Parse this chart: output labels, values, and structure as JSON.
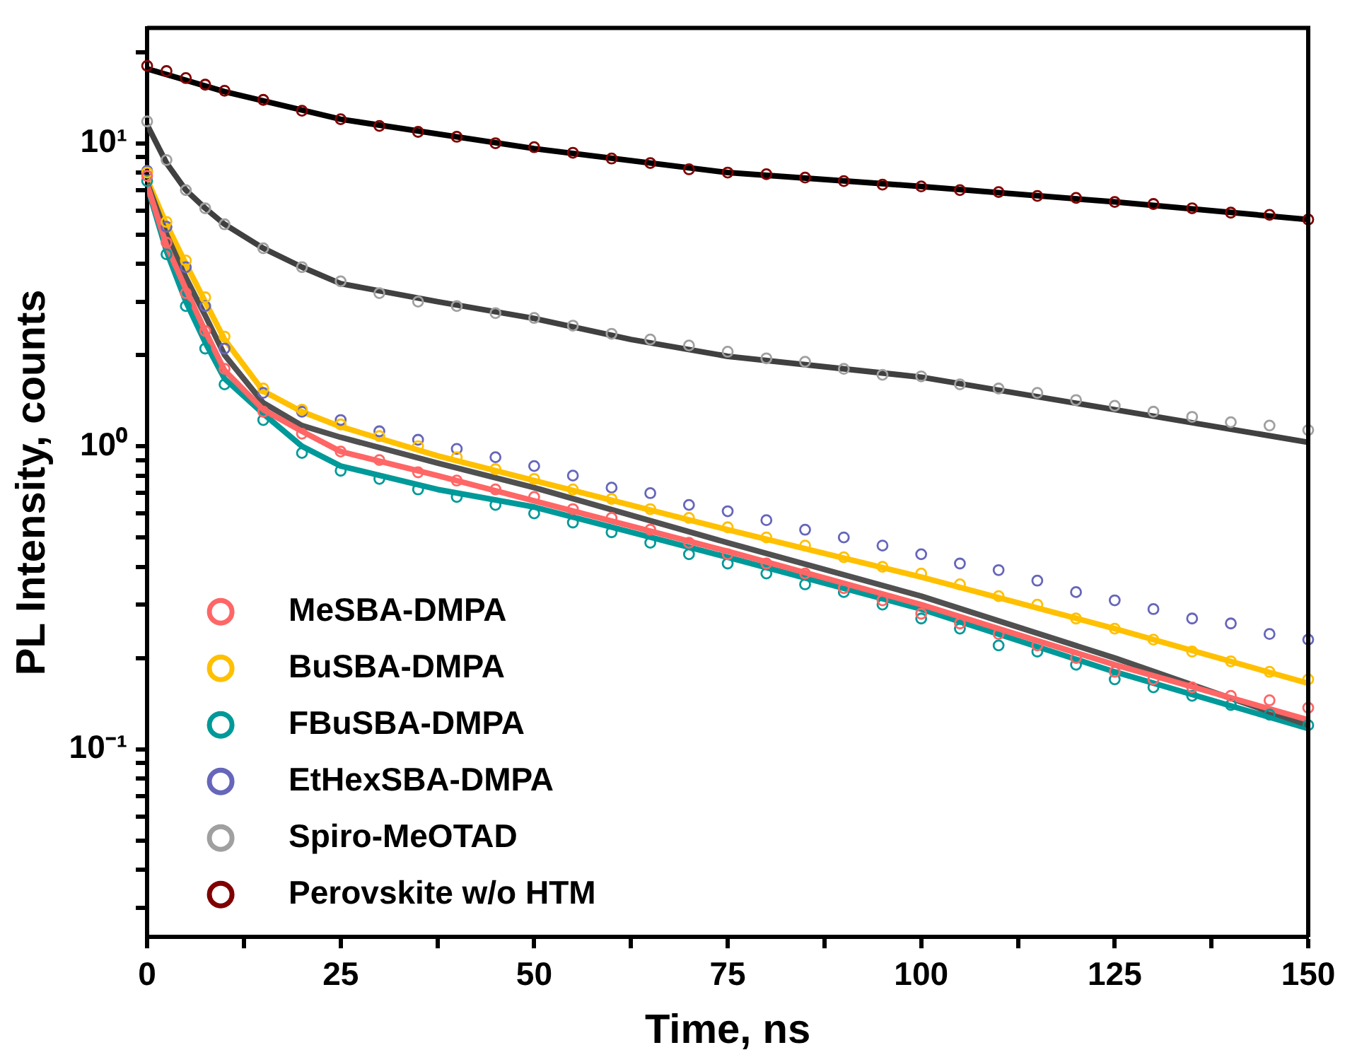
{
  "chart_data": {
    "type": "scatter",
    "xlabel": "Time, ns",
    "ylabel": "PL Intensity, counts",
    "log": "y",
    "legend": "bottom left",
    "grid": false,
    "marker": "circle",
    "xlim": [
      0,
      150
    ],
    "xticks": [
      0,
      {
        "value": 12.5,
        "label": null
      },
      25,
      {
        "value": 37.5,
        "label": null
      },
      50,
      {
        "value": 62.5,
        "label": null
      },
      75,
      {
        "value": 87.5,
        "label": null
      },
      100,
      {
        "value": 112.5,
        "label": null
      },
      125,
      {
        "value": 137.5,
        "label": null
      },
      150
    ],
    "ylim": [
      0.024,
      24
    ],
    "yticks": [
      {
        "value": 0.03,
        "label": null
      },
      {
        "value": 0.04,
        "label": null
      },
      {
        "value": 0.05,
        "label": null
      },
      {
        "value": 0.06,
        "label": null
      },
      {
        "value": 0.07,
        "label": null
      },
      {
        "value": 0.08,
        "label": null
      },
      {
        "value": 0.09,
        "label": null
      },
      {
        "value": 0.1,
        "label": "10⁻¹"
      },
      {
        "value": 0.2,
        "label": null
      },
      {
        "value": 0.3,
        "label": null
      },
      {
        "value": 0.4,
        "label": null
      },
      {
        "value": 0.5,
        "label": null
      },
      {
        "value": 0.6,
        "label": null
      },
      {
        "value": 0.7,
        "label": null
      },
      {
        "value": 0.8,
        "label": null
      },
      {
        "value": 0.9,
        "label": null
      },
      {
        "value": 1,
        "label": "10⁰"
      },
      {
        "value": 2,
        "label": null
      },
      {
        "value": 3,
        "label": null
      },
      {
        "value": 4,
        "label": null
      },
      {
        "value": 5,
        "label": null
      },
      {
        "value": 6,
        "label": null
      },
      {
        "value": 7,
        "label": null
      },
      {
        "value": 8,
        "label": null
      },
      {
        "value": 9,
        "label": null
      },
      {
        "value": 10,
        "label": "10¹"
      },
      {
        "value": 20,
        "label": null
      }
    ],
    "series": [
      {
        "name": "MeSBA-DMPA",
        "color": "#ff6666",
        "x": [
          0,
          2.5,
          5,
          7.5,
          10,
          15,
          20,
          25,
          30,
          35,
          40,
          45,
          50,
          55,
          60,
          65,
          70,
          75,
          80,
          85,
          90,
          95,
          100,
          105,
          110,
          115,
          120,
          125,
          130,
          135,
          140,
          145,
          150
        ],
        "values": [
          7.8,
          4.7,
          3.2,
          2.4,
          1.8,
          1.3,
          1.1,
          0.96,
          0.9,
          0.82,
          0.77,
          0.72,
          0.68,
          0.62,
          0.58,
          0.53,
          0.48,
          0.44,
          0.41,
          0.38,
          0.34,
          0.31,
          0.28,
          0.26,
          0.24,
          0.22,
          0.2,
          0.18,
          0.17,
          0.16,
          0.15,
          0.145,
          0.137
        ]
      },
      {
        "name": "BuSBA-DMPA",
        "color": "#ffc000",
        "x": [
          0,
          2.5,
          5,
          7.5,
          10,
          15,
          20,
          25,
          30,
          35,
          40,
          45,
          50,
          55,
          60,
          65,
          70,
          75,
          80,
          85,
          90,
          95,
          100,
          105,
          110,
          115,
          120,
          125,
          130,
          135,
          140,
          145,
          150
        ],
        "values": [
          8.0,
          5.5,
          4.1,
          3.1,
          2.3,
          1.55,
          1.32,
          1.18,
          1.08,
          1.0,
          0.92,
          0.84,
          0.78,
          0.72,
          0.67,
          0.62,
          0.58,
          0.54,
          0.5,
          0.47,
          0.43,
          0.4,
          0.38,
          0.35,
          0.32,
          0.3,
          0.27,
          0.25,
          0.23,
          0.21,
          0.195,
          0.18,
          0.17
        ]
      },
      {
        "name": "FBuSBA-DMPA",
        "color": "#009999",
        "x": [
          0,
          2.5,
          5,
          7.5,
          10,
          15,
          20,
          25,
          30,
          35,
          40,
          45,
          50,
          55,
          60,
          65,
          70,
          75,
          80,
          85,
          90,
          95,
          100,
          105,
          110,
          115,
          120,
          125,
          130,
          135,
          140,
          145,
          150
        ],
        "values": [
          7.5,
          4.3,
          2.9,
          2.1,
          1.6,
          1.22,
          0.95,
          0.83,
          0.78,
          0.72,
          0.68,
          0.64,
          0.6,
          0.56,
          0.52,
          0.48,
          0.44,
          0.41,
          0.38,
          0.35,
          0.33,
          0.3,
          0.27,
          0.25,
          0.22,
          0.21,
          0.19,
          0.17,
          0.16,
          0.15,
          0.14,
          0.13,
          0.12
        ]
      },
      {
        "name": "EtHexSBA-DMPA",
        "color": "#6666bb",
        "x": [
          0,
          2.5,
          5,
          7.5,
          10,
          15,
          20,
          25,
          30,
          35,
          40,
          45,
          50,
          55,
          60,
          65,
          70,
          75,
          80,
          85,
          90,
          95,
          100,
          105,
          110,
          115,
          120,
          125,
          130,
          135,
          140,
          145,
          150
        ],
        "values": [
          8.1,
          5.3,
          3.9,
          2.9,
          2.1,
          1.5,
          1.3,
          1.22,
          1.12,
          1.05,
          0.98,
          0.92,
          0.86,
          0.8,
          0.73,
          0.7,
          0.64,
          0.61,
          0.57,
          0.53,
          0.5,
          0.47,
          0.44,
          0.41,
          0.39,
          0.36,
          0.33,
          0.31,
          0.29,
          0.27,
          0.26,
          0.24,
          0.23
        ]
      },
      {
        "name": "Spiro-MeOTAD",
        "color": "#a0a0a0",
        "x": [
          0,
          2.5,
          5,
          7.5,
          10,
          15,
          20,
          25,
          30,
          35,
          40,
          45,
          50,
          55,
          60,
          65,
          70,
          75,
          80,
          85,
          90,
          95,
          100,
          105,
          110,
          115,
          120,
          125,
          130,
          135,
          140,
          145,
          150
        ],
        "values": [
          11.8,
          8.8,
          7.0,
          6.1,
          5.4,
          4.5,
          3.9,
          3.5,
          3.2,
          3.0,
          2.9,
          2.75,
          2.65,
          2.5,
          2.35,
          2.25,
          2.15,
          2.05,
          1.95,
          1.9,
          1.8,
          1.72,
          1.7,
          1.6,
          1.55,
          1.5,
          1.42,
          1.36,
          1.3,
          1.25,
          1.2,
          1.17,
          1.13
        ]
      },
      {
        "name": "Perovskite w/o HTM",
        "color": "#800000",
        "x": [
          0,
          2.5,
          5,
          7.5,
          10,
          15,
          20,
          25,
          30,
          35,
          40,
          45,
          50,
          55,
          60,
          65,
          70,
          75,
          80,
          85,
          90,
          95,
          100,
          105,
          110,
          115,
          120,
          125,
          130,
          135,
          140,
          145,
          150
        ],
        "values": [
          18,
          17.3,
          16.4,
          15.6,
          14.9,
          13.9,
          12.8,
          12.0,
          11.4,
          10.9,
          10.5,
          10.0,
          9.7,
          9.3,
          8.9,
          8.6,
          8.2,
          8.0,
          7.9,
          7.7,
          7.5,
          7.3,
          7.2,
          7.0,
          6.9,
          6.7,
          6.6,
          6.4,
          6.3,
          6.1,
          5.9,
          5.8,
          5.6
        ]
      },
      {
        "type": "line",
        "color": "#ff6666",
        "marker": "none",
        "x": [
          0,
          2.5,
          5,
          7.5,
          10,
          15,
          20,
          25,
          37.5,
          50,
          75,
          100,
          125,
          150
        ],
        "values": [
          7.3,
          4.6,
          3.3,
          2.4,
          1.78,
          1.32,
          1.12,
          0.96,
          0.8,
          0.66,
          0.45,
          0.3,
          0.19,
          0.125
        ]
      },
      {
        "type": "line",
        "color": "#505050",
        "marker": "none",
        "x": [
          0,
          2.5,
          5,
          7.5,
          10,
          15,
          20,
          25,
          37.5,
          50,
          75,
          100,
          125,
          150
        ],
        "values": [
          7.4,
          5.0,
          3.6,
          2.7,
          2.0,
          1.39,
          1.17,
          1.07,
          0.88,
          0.73,
          0.48,
          0.32,
          0.2,
          0.12
        ]
      },
      {
        "type": "line",
        "color": "#009999",
        "marker": "none",
        "x": [
          0,
          2.5,
          5,
          7.5,
          10,
          15,
          20,
          25,
          37.5,
          50,
          75,
          100,
          125,
          150
        ],
        "values": [
          7.2,
          4.4,
          3.0,
          2.2,
          1.67,
          1.28,
          1.0,
          0.86,
          0.72,
          0.63,
          0.43,
          0.29,
          0.18,
          0.117
        ]
      },
      {
        "type": "line",
        "color": "#ffc000",
        "marker": "none",
        "x": [
          0,
          2.5,
          5,
          7.5,
          10,
          15,
          20,
          25,
          37.5,
          50,
          75,
          100,
          125,
          150
        ],
        "values": [
          7.6,
          5.4,
          4.0,
          3.0,
          2.25,
          1.52,
          1.3,
          1.16,
          0.93,
          0.77,
          0.53,
          0.37,
          0.25,
          0.165
        ]
      },
      {
        "type": "line",
        "color": "#404040",
        "marker": "none",
        "x": [
          0,
          2.5,
          5,
          7.5,
          10,
          15,
          20,
          25,
          37.5,
          50,
          62.5,
          75,
          100,
          125,
          150
        ],
        "values": [
          11.5,
          8.6,
          7.0,
          6.1,
          5.4,
          4.5,
          3.9,
          3.44,
          3.0,
          2.64,
          2.25,
          1.98,
          1.69,
          1.32,
          1.03
        ]
      },
      {
        "type": "line",
        "color": "#000000",
        "marker": "none",
        "x": [
          0,
          10,
          25,
          50,
          75,
          100,
          125,
          150
        ],
        "values": [
          17.6,
          14.8,
          12.0,
          9.6,
          8.0,
          7.2,
          6.4,
          5.6
        ]
      }
    ]
  }
}
